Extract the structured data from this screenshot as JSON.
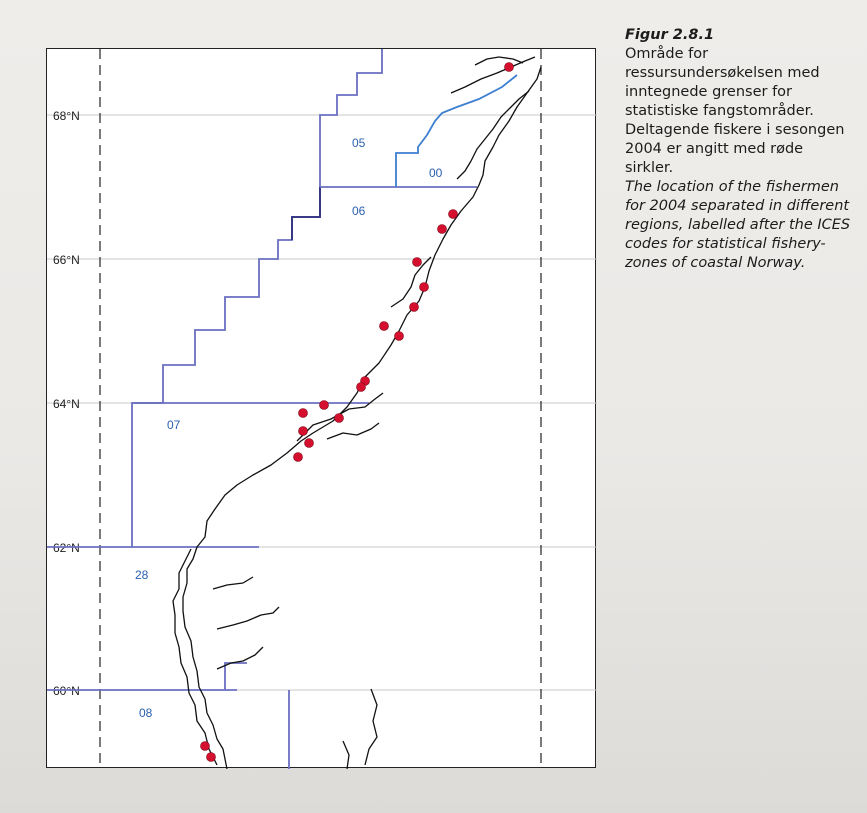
{
  "caption": {
    "title": "Figur 2.8.1",
    "norwegian_text": "Område for ressursundersøkelsen med inntegnede grenser for statistiske fangstområder. Deltagende fiskere i sesongen 2004 er angitt med røde sirkler.",
    "english_text": "The location of the fishermen for 2004 separated in different regions, labelled after the ICES codes for statistical fishery-zones of coastal Norway."
  },
  "map": {
    "latitude_labels": [
      "68°N",
      "66°N",
      "64°N",
      "62°N",
      "60°N"
    ],
    "zone_labels": [
      "05",
      "00",
      "06",
      "07",
      "28",
      "08"
    ],
    "colors": {
      "zone_line": "#6a6fc0",
      "zone_line_dark": "#2e2f7a",
      "coast_line": "#111111",
      "fishermen_dot": "#d4102e",
      "grid_line": "#c9c9c9",
      "label_blue": "#2b5fb0"
    },
    "legend_marker": "red-circle"
  }
}
